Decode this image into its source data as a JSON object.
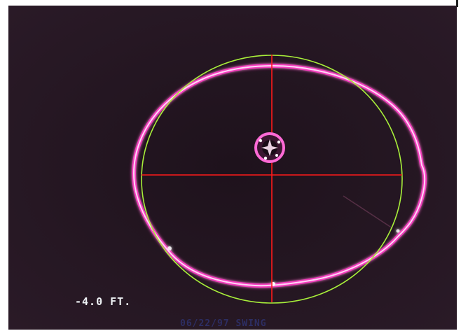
{
  "overlay": {
    "depth_readout": "-4.0 FT.",
    "bottom_caption": "06/22/97 SWING"
  },
  "colors": {
    "background": "#231621",
    "pipe_ring": "#ff3ccf",
    "pipe_ring_core": "#ffd6f5",
    "fit_circle": "#a8ef3a",
    "crosshair": "#ff1a1a",
    "readout_text": "#eef2f5",
    "caption_text": "#2d2e63"
  },
  "icons": {
    "center_target": "center-target-icon"
  }
}
